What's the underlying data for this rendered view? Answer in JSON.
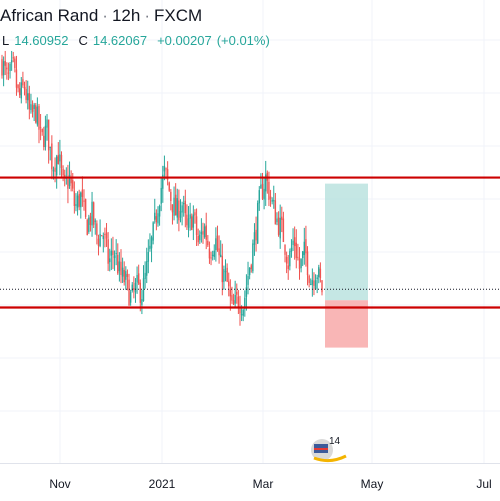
{
  "header": {
    "title": "African Rand",
    "interval": "12h",
    "source": "FXCM",
    "separator": "·",
    "low_label": "L",
    "low_value": "14.60952",
    "close_label": "C",
    "close_value": "14.62067",
    "change": "+0.00207",
    "change_pct": "(+0.01%)"
  },
  "x_axis": {
    "ticks": [
      {
        "label": "Nov"
      },
      {
        "label": "2021"
      },
      {
        "label": "Mar"
      },
      {
        "label": "May"
      },
      {
        "label": "Jul"
      }
    ]
  },
  "colors": {
    "up": "#26a69a",
    "down": "#ef5350",
    "support_resistance": "#cc0000",
    "target_zone": "#b2dfdb",
    "stop_zone": "#f8a9a9",
    "grid": "#f0f3fa"
  },
  "watermark": {
    "text": "14"
  },
  "chart_data": {
    "type": "candlestick",
    "ylim": [
      13.7,
      17.1
    ],
    "resistance": 16.05,
    "support": 14.98,
    "current_price": 15.13,
    "target_zone": [
      15.04,
      16.0
    ],
    "stop_zone": [
      14.65,
      15.04
    ],
    "path": [
      17.0,
      16.85,
      16.95,
      16.7,
      16.8,
      16.55,
      16.6,
      16.35,
      16.45,
      16.15,
      16.25,
      15.95,
      16.05,
      15.8,
      15.9,
      15.65,
      15.75,
      15.55,
      15.6,
      15.35,
      15.45,
      15.25,
      15.2,
      15.05,
      15.15,
      15.1,
      15.35,
      15.6,
      15.9,
      16.1,
      15.9,
      15.75,
      15.85,
      15.6,
      15.75,
      15.5,
      15.65,
      15.45,
      15.55,
      15.3,
      15.2,
      14.95,
      15.05,
      15.0,
      15.3,
      15.55,
      15.9,
      16.05,
      15.85,
      15.7,
      15.6,
      15.35,
      15.55,
      15.3,
      15.45,
      15.2,
      15.3,
      15.13
    ]
  }
}
